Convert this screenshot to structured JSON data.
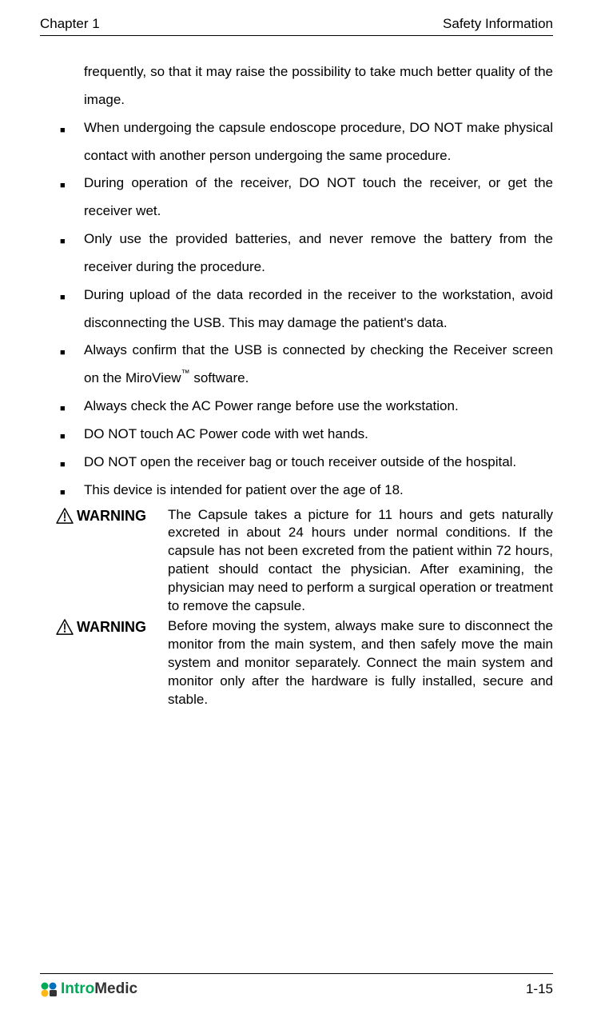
{
  "header": {
    "chapter": "Chapter 1",
    "section": "Safety Information"
  },
  "continuation_text": "frequently, so that it may raise the possibility to take much better quality of the image.",
  "bullets": [
    "When undergoing the capsule endoscope procedure, DO NOT make physical contact with another person undergoing the same procedure.",
    "During operation of the receiver, DO NOT touch the receiver, or get the receiver wet.",
    "Only use the provided batteries, and never remove the battery from the receiver during the procedure.",
    "During upload of the data recorded in the receiver to the workstation, avoid disconnecting the USB. This may damage the patient's data.",
    "Always confirm that the USB is connected by checking the Receiver screen on the MiroView™ software.",
    "Always check the AC Power range before use the workstation.",
    "DO NOT touch AC Power code with wet hands.",
    "DO NOT open the receiver bag or touch receiver outside of the hospital.",
    "This device is intended for patient over the age of 18."
  ],
  "warnings": [
    {
      "label": "WARNING",
      "text": "The Capsule takes a picture for 11 hours and gets naturally excreted in about 24 hours under normal conditions. If the capsule has not been excreted from the patient within 72 hours, patient should contact the physician. After examining, the physician may need to perform a surgical operation or treatment to remove the capsule."
    },
    {
      "label": "WARNING",
      "text": "Before moving the system, always make sure to disconnect the monitor from the main system, and then safely move the main system and monitor separately. Connect the main system and monitor only after the hardware is fully installed, secure and stable."
    }
  ],
  "footer": {
    "logo_intro": "Intro",
    "logo_medic": "Medic",
    "page_number": "1-15"
  },
  "colors": {
    "text": "#000000",
    "logo_green": "#00a859",
    "logo_dark": "#333333",
    "logo_blue": "#0072bc",
    "logo_yellow": "#fdb813"
  }
}
